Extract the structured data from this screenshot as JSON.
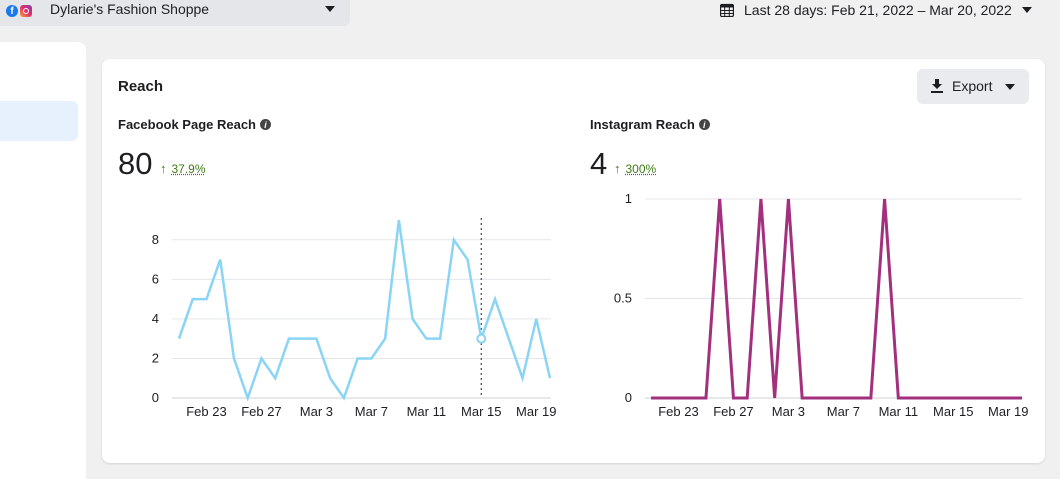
{
  "account": {
    "name": "Dylarie's Fashion Shoppe"
  },
  "date_range": {
    "label": "Last 28 days: Feb 21, 2022 – Mar 20, 2022"
  },
  "card": {
    "title": "Reach",
    "export_label": "Export"
  },
  "facebook": {
    "title": "Facebook Page Reach",
    "total": "80",
    "change": "37.9%",
    "arrow": "↑",
    "color": "#8ad4f5"
  },
  "instagram": {
    "title": "Instagram Reach",
    "total": "4",
    "change": "300%",
    "arrow": "↑",
    "color": "#a3307f"
  },
  "chart_data": [
    {
      "type": "line",
      "title": "Facebook Page Reach",
      "x_tick_labels": [
        "Feb 23",
        "Feb 27",
        "Mar 3",
        "Mar 7",
        "Mar 11",
        "Mar 15",
        "Mar 19"
      ],
      "y_tick_labels": [
        "0",
        "2",
        "4",
        "6",
        "8"
      ],
      "ylim": [
        0,
        9
      ],
      "values": [
        3,
        5,
        5,
        7,
        2,
        0,
        2,
        1,
        3,
        3,
        3,
        1,
        0,
        2,
        2,
        3,
        9,
        4,
        3,
        3,
        8,
        7,
        3,
        5,
        3,
        1,
        4,
        1
      ],
      "highlight_index": 22,
      "grid": true
    },
    {
      "type": "line",
      "title": "Instagram Reach",
      "x_tick_labels": [
        "Feb 23",
        "Feb 27",
        "Mar 3",
        "Mar 7",
        "Mar 11",
        "Mar 15",
        "Mar 19"
      ],
      "y_tick_labels": [
        "0",
        "0.5",
        "1"
      ],
      "ylim": [
        0,
        1
      ],
      "values": [
        0,
        0,
        0,
        0,
        0,
        1,
        0,
        0,
        1,
        0,
        1,
        0,
        0,
        0,
        0,
        0,
        0,
        1,
        0,
        0,
        0,
        0,
        0,
        0,
        0,
        0,
        0,
        0
      ],
      "grid": true
    }
  ]
}
